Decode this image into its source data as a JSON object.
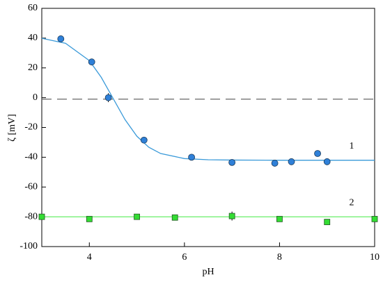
{
  "chart_data": {
    "type": "scatter",
    "xlabel": "pH",
    "ylabel": "ζ [mV]",
    "xlim": [
      3,
      10
    ],
    "xticks": [
      4,
      6,
      8,
      10
    ],
    "ylim": [
      -100,
      60
    ],
    "yticks": [
      -100,
      -80,
      -60,
      -40,
      -20,
      0,
      20,
      40,
      60
    ],
    "hlines": [
      {
        "value": -1,
        "style": "dashed",
        "color": "#666666"
      }
    ],
    "series": [
      {
        "name": "1",
        "color": "#2f80d8",
        "marker": "circle",
        "x": [
          3.4,
          4.05,
          4.4,
          5.15,
          6.15,
          7.0,
          7.9,
          8.25,
          8.8,
          9.0
        ],
        "values": [
          39.5,
          24,
          0,
          -28.5,
          -40,
          -43.5,
          -44,
          -43,
          -37.5,
          -43
        ],
        "errors": [
          1,
          1,
          3,
          1,
          1,
          1,
          1,
          1,
          1,
          1
        ],
        "fit": {
          "color": "#3a9ad9",
          "x": [
            3,
            3.5,
            4,
            4.25,
            4.5,
            4.75,
            5,
            5.25,
            5.5,
            6,
            6.5,
            7,
            8,
            10
          ],
          "values": [
            39.9,
            36.5,
            24.9,
            13.7,
            -0.5,
            -14.7,
            -25.9,
            -33.3,
            -37.5,
            -40.9,
            -41.7,
            -41.9,
            -42,
            -42
          ]
        }
      },
      {
        "name": "2",
        "color": "#33dd33",
        "marker": "square",
        "x": [
          3,
          4,
          5,
          5.8,
          7,
          8,
          9,
          10
        ],
        "values": [
          -80,
          -81.5,
          -80,
          -80.5,
          -79.5,
          -81.5,
          -83.5,
          -81.5
        ],
        "errors": [
          1,
          1,
          1,
          1,
          3,
          1,
          1,
          1
        ],
        "fit": {
          "color": "#66ee66",
          "x": [
            3,
            10
          ],
          "values": [
            -80,
            -80
          ]
        }
      }
    ]
  }
}
